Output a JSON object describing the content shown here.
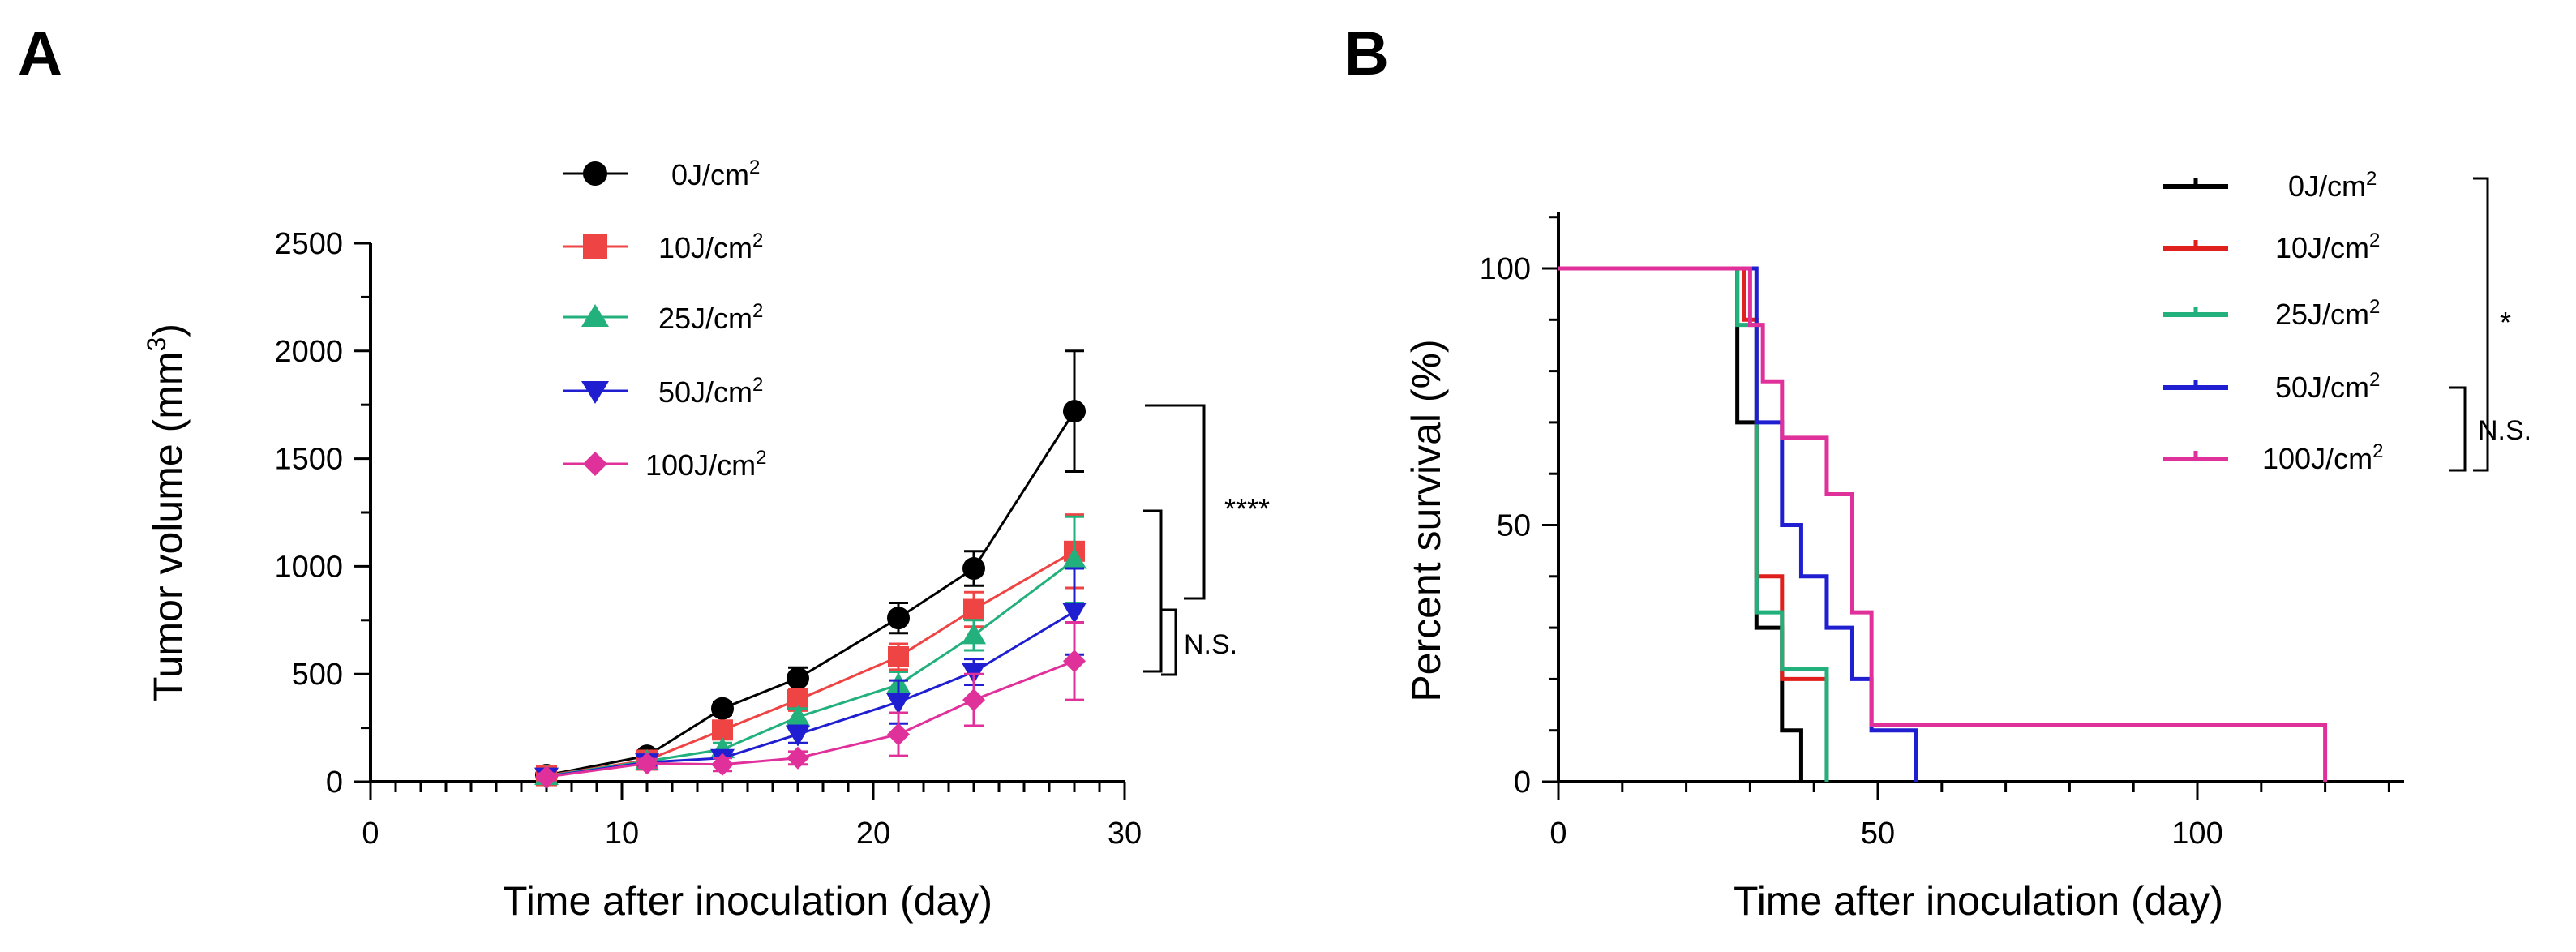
{
  "figure": {
    "panel_a_label": "A",
    "panel_b_label": "B"
  },
  "chart_data": [
    {
      "type": "line",
      "title": "",
      "xlabel": "Time after inoculation  (day)",
      "ylabel": "Tumor volume (mm3)",
      "ylabel_main": "Tumor volume (mm",
      "ylabel_sup": "3",
      "ylabel_tail": ")",
      "xlim": [
        0,
        30
      ],
      "ylim": [
        0,
        2500
      ],
      "xticks": [
        0,
        10,
        20,
        30
      ],
      "yticks": [
        0,
        500,
        1000,
        1500,
        2000,
        2500
      ],
      "series": [
        {
          "name": "0J/cm2",
          "label_main": "0J/cm",
          "label_sup": "2",
          "color": "#000000",
          "marker": "circle",
          "x": [
            7,
            11,
            14,
            17,
            21,
            24,
            28
          ],
          "values": [
            30,
            120,
            340,
            480,
            760,
            990,
            1720
          ],
          "errors": [
            20,
            25,
            30,
            50,
            70,
            80,
            280
          ]
        },
        {
          "name": "10J/cm2",
          "label_main": "10J/cm",
          "label_sup": "2",
          "color": "#ef4444",
          "marker": "square",
          "x": [
            7,
            11,
            14,
            17,
            21,
            24,
            28
          ],
          "values": [
            28,
            100,
            240,
            380,
            580,
            800,
            1070
          ],
          "errors": [
            15,
            20,
            40,
            50,
            60,
            80,
            170
          ]
        },
        {
          "name": "25J/cm2",
          "label_main": "25J/cm",
          "label_sup": "2",
          "color": "#22b07d",
          "marker": "triangle-up",
          "x": [
            7,
            11,
            14,
            17,
            21,
            24,
            28
          ],
          "values": [
            26,
            95,
            150,
            300,
            450,
            680,
            1030
          ],
          "errors": [
            15,
            20,
            30,
            40,
            60,
            70,
            200
          ]
        },
        {
          "name": "50J/cm2",
          "label_main": "50J/cm",
          "label_sup": "2",
          "color": "#1f1fd1",
          "marker": "triangle-down",
          "x": [
            7,
            11,
            14,
            17,
            21,
            24,
            28
          ],
          "values": [
            24,
            90,
            110,
            220,
            370,
            510,
            790
          ],
          "errors": [
            15,
            20,
            30,
            40,
            100,
            60,
            200
          ]
        },
        {
          "name": "100J/cm2",
          "label_main": "100J/cm",
          "label_sup": "2",
          "color": "#e0319b",
          "marker": "diamond",
          "x": [
            7,
            11,
            14,
            17,
            21,
            24,
            28
          ],
          "values": [
            22,
            85,
            80,
            110,
            220,
            380,
            560
          ],
          "errors": [
            15,
            20,
            30,
            30,
            100,
            120,
            180
          ]
        }
      ],
      "annotations": [
        {
          "text": "****",
          "between": [
            "0J/cm2",
            "10J/cm2 – 100J/cm2"
          ]
        },
        {
          "text": "N.S.",
          "between": [
            "50J/cm2",
            "100J/cm2"
          ]
        }
      ]
    },
    {
      "type": "line",
      "subtype": "kaplan-meier step",
      "title": "",
      "xlabel": "Time after inoculation  (day)",
      "ylabel": "Percent survival (%)",
      "xlim": [
        0,
        130
      ],
      "ylim": [
        0,
        110
      ],
      "xticks": [
        0,
        50,
        100
      ],
      "yticks": [
        0,
        50,
        100
      ],
      "series": [
        {
          "name": "0J/cm2",
          "label_main": "0J/cm",
          "label_sup": "2",
          "color": "#000000",
          "steps": [
            [
              0,
              100
            ],
            [
              28,
              100
            ],
            [
              28,
              70
            ],
            [
              31,
              70
            ],
            [
              31,
              30
            ],
            [
              35,
              30
            ],
            [
              35,
              10
            ],
            [
              38,
              10
            ],
            [
              38,
              0
            ]
          ]
        },
        {
          "name": "10J/cm2",
          "label_main": "10J/cm",
          "label_sup": "2",
          "color": "#e0201c",
          "steps": [
            [
              0,
              100
            ],
            [
              29,
              100
            ],
            [
              29,
              90
            ],
            [
              31,
              90
            ],
            [
              31,
              40
            ],
            [
              35,
              40
            ],
            [
              35,
              20
            ],
            [
              42,
              20
            ],
            [
              42,
              0
            ]
          ]
        },
        {
          "name": "25J/cm2",
          "label_main": "25J/cm",
          "label_sup": "2",
          "color": "#22b07d",
          "steps": [
            [
              0,
              100
            ],
            [
              28,
              100
            ],
            [
              28,
              89
            ],
            [
              31,
              89
            ],
            [
              31,
              33
            ],
            [
              35,
              33
            ],
            [
              35,
              22
            ],
            [
              42,
              22
            ],
            [
              42,
              0
            ]
          ]
        },
        {
          "name": "50J/cm2",
          "label_main": "50J/cm",
          "label_sup": "2",
          "color": "#1f1fd1",
          "steps": [
            [
              0,
              100
            ],
            [
              31,
              100
            ],
            [
              31,
              70
            ],
            [
              35,
              70
            ],
            [
              35,
              50
            ],
            [
              38,
              50
            ],
            [
              38,
              40
            ],
            [
              42,
              40
            ],
            [
              42,
              30
            ],
            [
              46,
              30
            ],
            [
              46,
              20
            ],
            [
              49,
              20
            ],
            [
              49,
              10
            ],
            [
              56,
              10
            ],
            [
              56,
              0
            ]
          ]
        },
        {
          "name": "100J/cm2",
          "label_main": "100J/cm",
          "label_sup": "2",
          "color": "#e0319b",
          "steps": [
            [
              0,
              100
            ],
            [
              30,
              100
            ],
            [
              30,
              89
            ],
            [
              32,
              89
            ],
            [
              32,
              78
            ],
            [
              35,
              78
            ],
            [
              35,
              67
            ],
            [
              42,
              67
            ],
            [
              42,
              56
            ],
            [
              46,
              56
            ],
            [
              46,
              33
            ],
            [
              49,
              33
            ],
            [
              49,
              11
            ],
            [
              120,
              11
            ],
            [
              120,
              0
            ]
          ]
        }
      ],
      "annotations": [
        {
          "text": "*",
          "between": [
            "0J/cm2",
            "100J/cm2"
          ]
        },
        {
          "text": "N.S.",
          "between": [
            "50J/cm2",
            "100J/cm2"
          ]
        }
      ]
    }
  ]
}
